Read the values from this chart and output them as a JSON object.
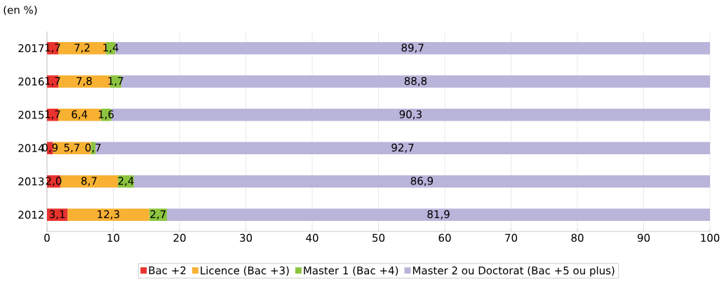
{
  "chart_data": {
    "type": "bar",
    "orientation": "horizontal",
    "stacked": true,
    "subtitle": "(en %)",
    "categories": [
      "2017",
      "2016",
      "2015",
      "2014",
      "2013",
      "2012"
    ],
    "series": [
      {
        "name": "Bac +2",
        "color": "#e8322e",
        "values": [
          1.7,
          1.7,
          1.7,
          0.9,
          2.0,
          3.1
        ],
        "value_labels": [
          "1,7",
          "1,7",
          "1,7",
          "0,9",
          "2,0",
          "3,1"
        ]
      },
      {
        "name": "Licence (Bac +3)",
        "color": "#f8b133",
        "values": [
          7.2,
          7.8,
          6.4,
          5.7,
          8.7,
          12.3
        ],
        "value_labels": [
          "7,2",
          "7,8",
          "6,4",
          "5,7",
          "8,7",
          "12,3"
        ]
      },
      {
        "name": "Master 1 (Bac +4)",
        "color": "#8cc43f",
        "values": [
          1.4,
          1.7,
          1.6,
          0.7,
          2.4,
          2.7
        ],
        "value_labels": [
          "1,4",
          "1,7",
          "1,6",
          "0,7",
          "2,4",
          "2,7"
        ]
      },
      {
        "name": "Master 2 ou Doctorat (Bac +5 ou plus)",
        "color": "#b9b4da",
        "values": [
          89.7,
          88.8,
          90.3,
          92.7,
          86.9,
          81.9
        ],
        "value_labels": [
          "89,7",
          "88,8",
          "90,3",
          "92,7",
          "86,9",
          "81,9"
        ]
      }
    ],
    "xlim": [
      0,
      100
    ],
    "xticks": [
      0,
      10,
      20,
      30,
      40,
      50,
      60,
      70,
      80,
      90,
      100
    ],
    "grid": "x",
    "legend": "bottom"
  }
}
